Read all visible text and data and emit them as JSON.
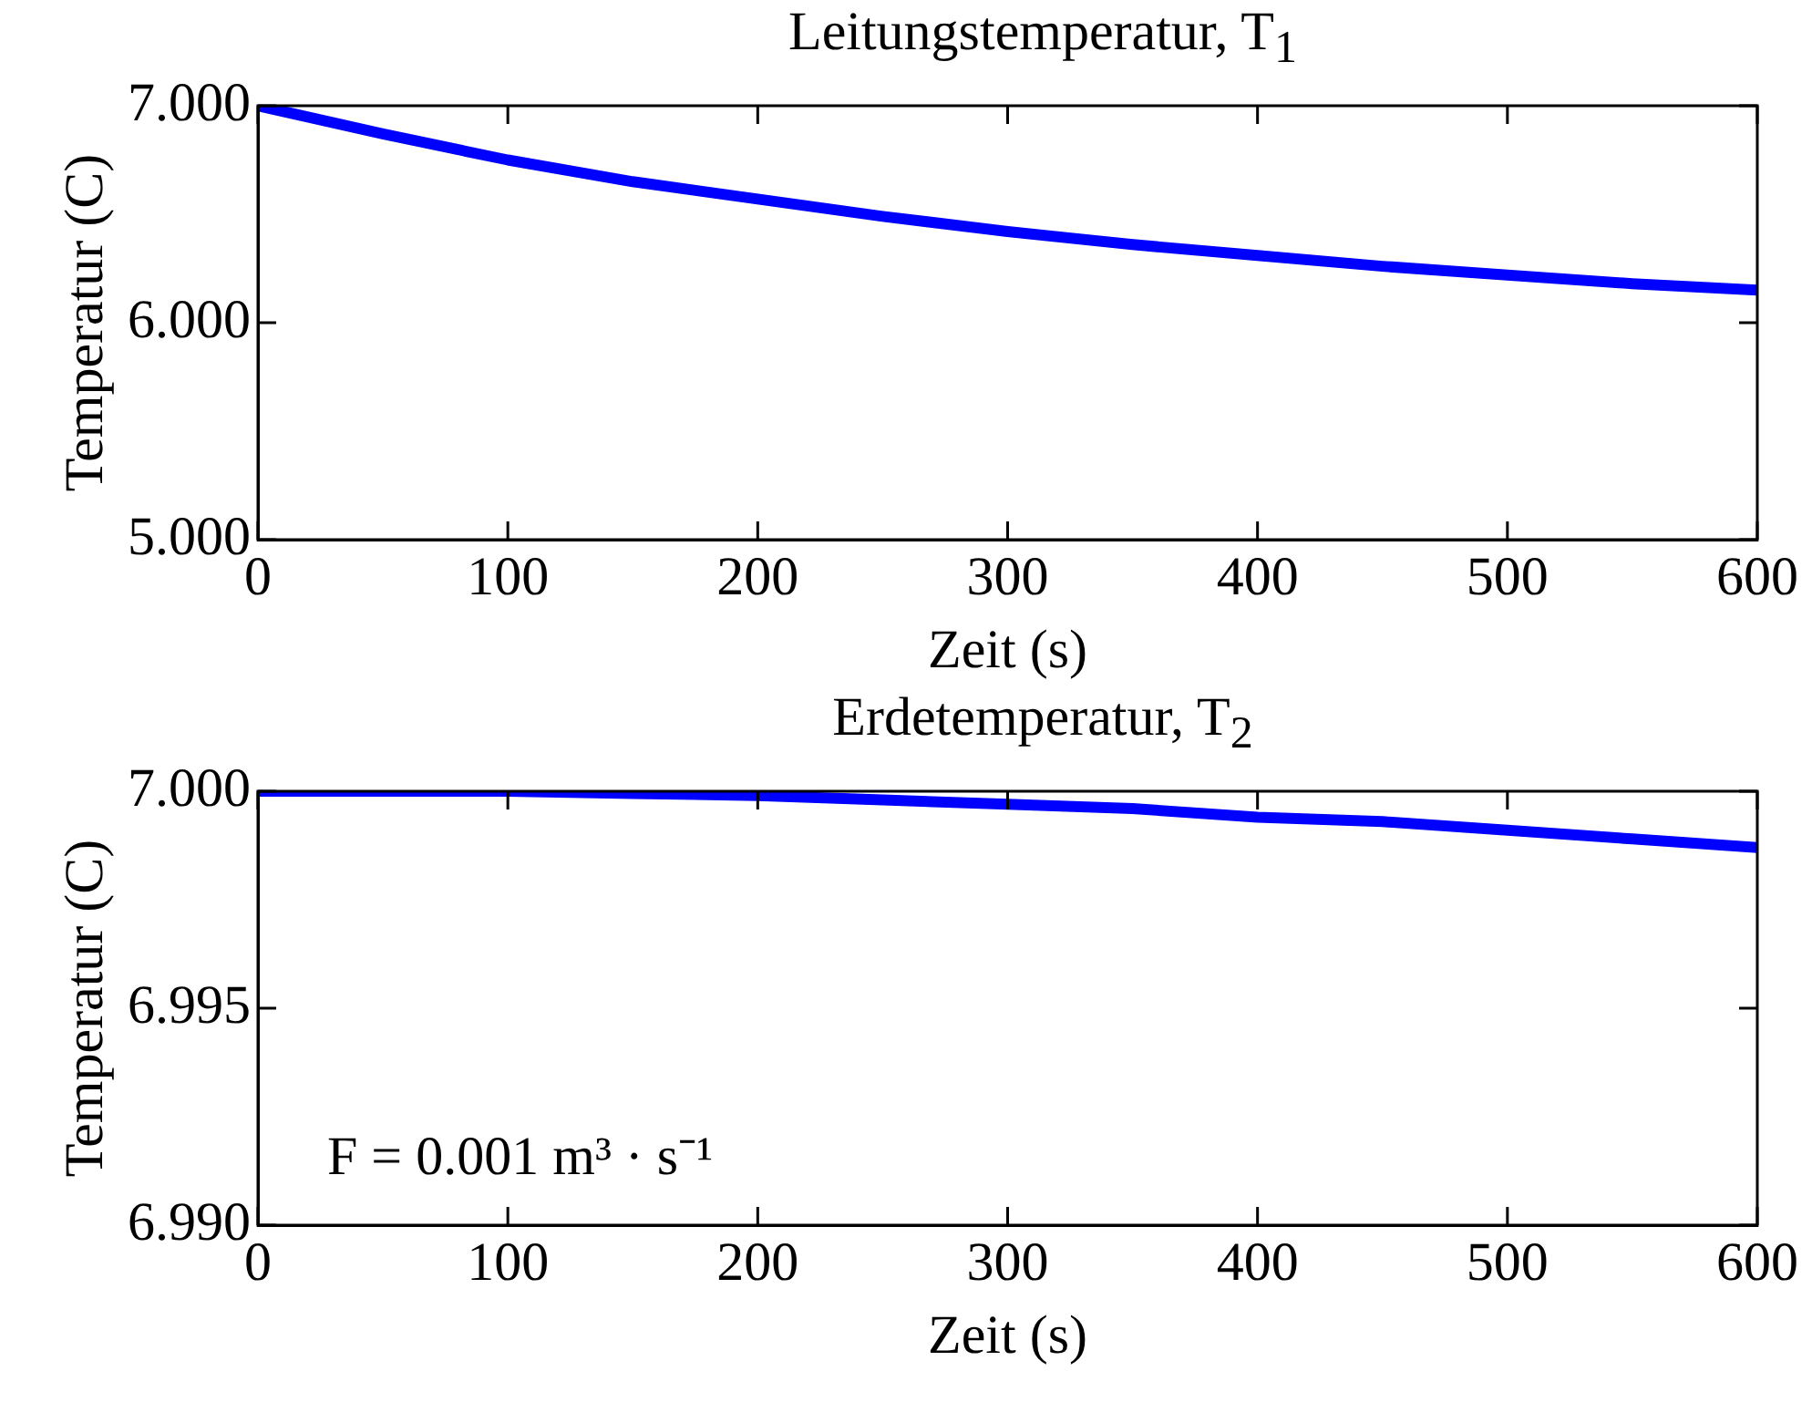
{
  "chart_data": [
    {
      "type": "line",
      "title": "Leitungstemperatur, T$_{1}$",
      "xlabel": "Zeit (s)",
      "ylabel": "Temperatur (C)",
      "x": [
        0,
        50,
        100,
        150,
        200,
        250,
        300,
        350,
        400,
        450,
        500,
        550,
        600
      ],
      "series": [
        {
          "color": "#0000ff",
          "values": [
            7.0,
            6.87,
            6.75,
            6.65,
            6.57,
            6.49,
            6.42,
            6.36,
            6.31,
            6.26,
            6.22,
            6.18,
            6.15
          ]
        }
      ],
      "xlim": [
        0,
        600
      ],
      "xticks": [
        0,
        100,
        200,
        300,
        400,
        500,
        600
      ],
      "ylim": [
        5,
        7
      ],
      "yticks": [
        {
          "value": 5,
          "label": "5.000"
        },
        {
          "value": 6,
          "label": "6.000"
        },
        {
          "value": 7,
          "label": "7.000"
        }
      ],
      "marker": "none",
      "line_style": "solid"
    },
    {
      "type": "line",
      "title": "Erdetemperatur, T$_{2}$",
      "xlabel": "Zeit (s)",
      "ylabel": "Temperatur (C)",
      "x": [
        0,
        50,
        100,
        150,
        200,
        250,
        300,
        350,
        400,
        450,
        500,
        550,
        600
      ],
      "series": [
        {
          "color": "#0000ff",
          "values": [
            7.0,
            7.0,
            7.0,
            6.99995,
            6.9999,
            6.9998,
            6.9997,
            6.9996,
            6.9994,
            6.9993,
            6.9991,
            6.9989,
            6.9987
          ]
        }
      ],
      "xlim": [
        0,
        600
      ],
      "xticks": [
        0,
        100,
        200,
        300,
        400,
        500,
        600
      ],
      "ylim": [
        6.99,
        7.0
      ],
      "yticks": [
        {
          "value": 6.99,
          "label": "6.990"
        },
        {
          "value": 6.995,
          "label": "6.995"
        },
        {
          "value": 7.0,
          "label": "7.000"
        }
      ],
      "marker": "none",
      "line_style": "solid",
      "annotations": [
        "F = 0.001 m³ · s⁻¹"
      ]
    }
  ]
}
